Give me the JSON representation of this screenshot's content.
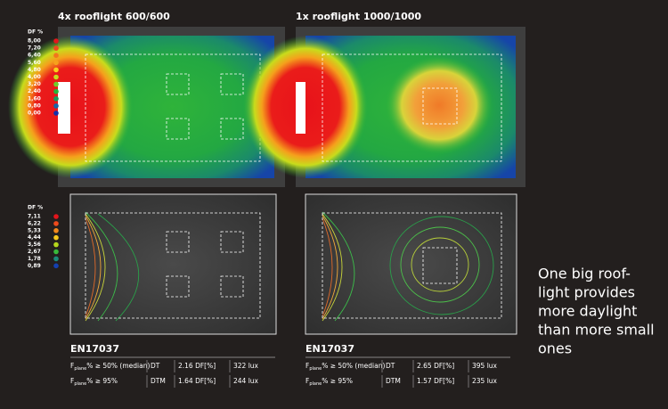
{
  "panels": [
    {
      "title": "4x rooflight 600/600",
      "table_title": "EN17037",
      "rows": [
        {
          "label": [
            "F",
            "plane",
            "% ≥ 50% (median)"
          ],
          "metric": "DT",
          "df": "2.16 DF[%]",
          "lux": "322 lux"
        },
        {
          "label": [
            "F",
            "plane",
            "% ≥ 95%"
          ],
          "metric": "DTM",
          "df": "1.64 DF[%]",
          "lux": "244 lux"
        }
      ]
    },
    {
      "title": "1x rooflight 1000/1000",
      "table_title": "EN17037",
      "rows": [
        {
          "label": [
            "F",
            "plane",
            "% ≥ 50% (median)"
          ],
          "metric": "DT",
          "df": "2.65 DF[%]",
          "lux": "395 lux"
        },
        {
          "label": [
            "F",
            "plane",
            "% ≥ 95%"
          ],
          "metric": "DTM",
          "df": "1.57 DF[%]",
          "lux": "235 lux"
        }
      ]
    }
  ],
  "legends": [
    {
      "title": "DF %",
      "labels": [
        "8,00",
        "7,20",
        "6,40",
        "5,60",
        "4,80",
        "4,00",
        "3,20",
        "2,40",
        "1,60",
        "0,80",
        "0,00"
      ],
      "colors": [
        "#e3141b",
        "#ee4a1c",
        "#f2761c",
        "#f6a11c",
        "#f8d01c",
        "#c8dc1c",
        "#6fcc2a",
        "#27b339",
        "#1a9a5a",
        "#1864a8",
        "#1430a8"
      ]
    },
    {
      "title": "DF %",
      "labels": [
        "7,11",
        "6,22",
        "5,33",
        "4,44",
        "3,56",
        "2,67",
        "1,78",
        "0,89"
      ],
      "colors": [
        "#e3141b",
        "#ee4a1c",
        "#f2881c",
        "#f8c81c",
        "#b4d61c",
        "#38b93a",
        "#1a8a7a",
        "#1440b0"
      ]
    }
  ],
  "caption": [
    "One big roof-",
    "light provides",
    "more daylight",
    "than more small",
    "ones"
  ]
}
